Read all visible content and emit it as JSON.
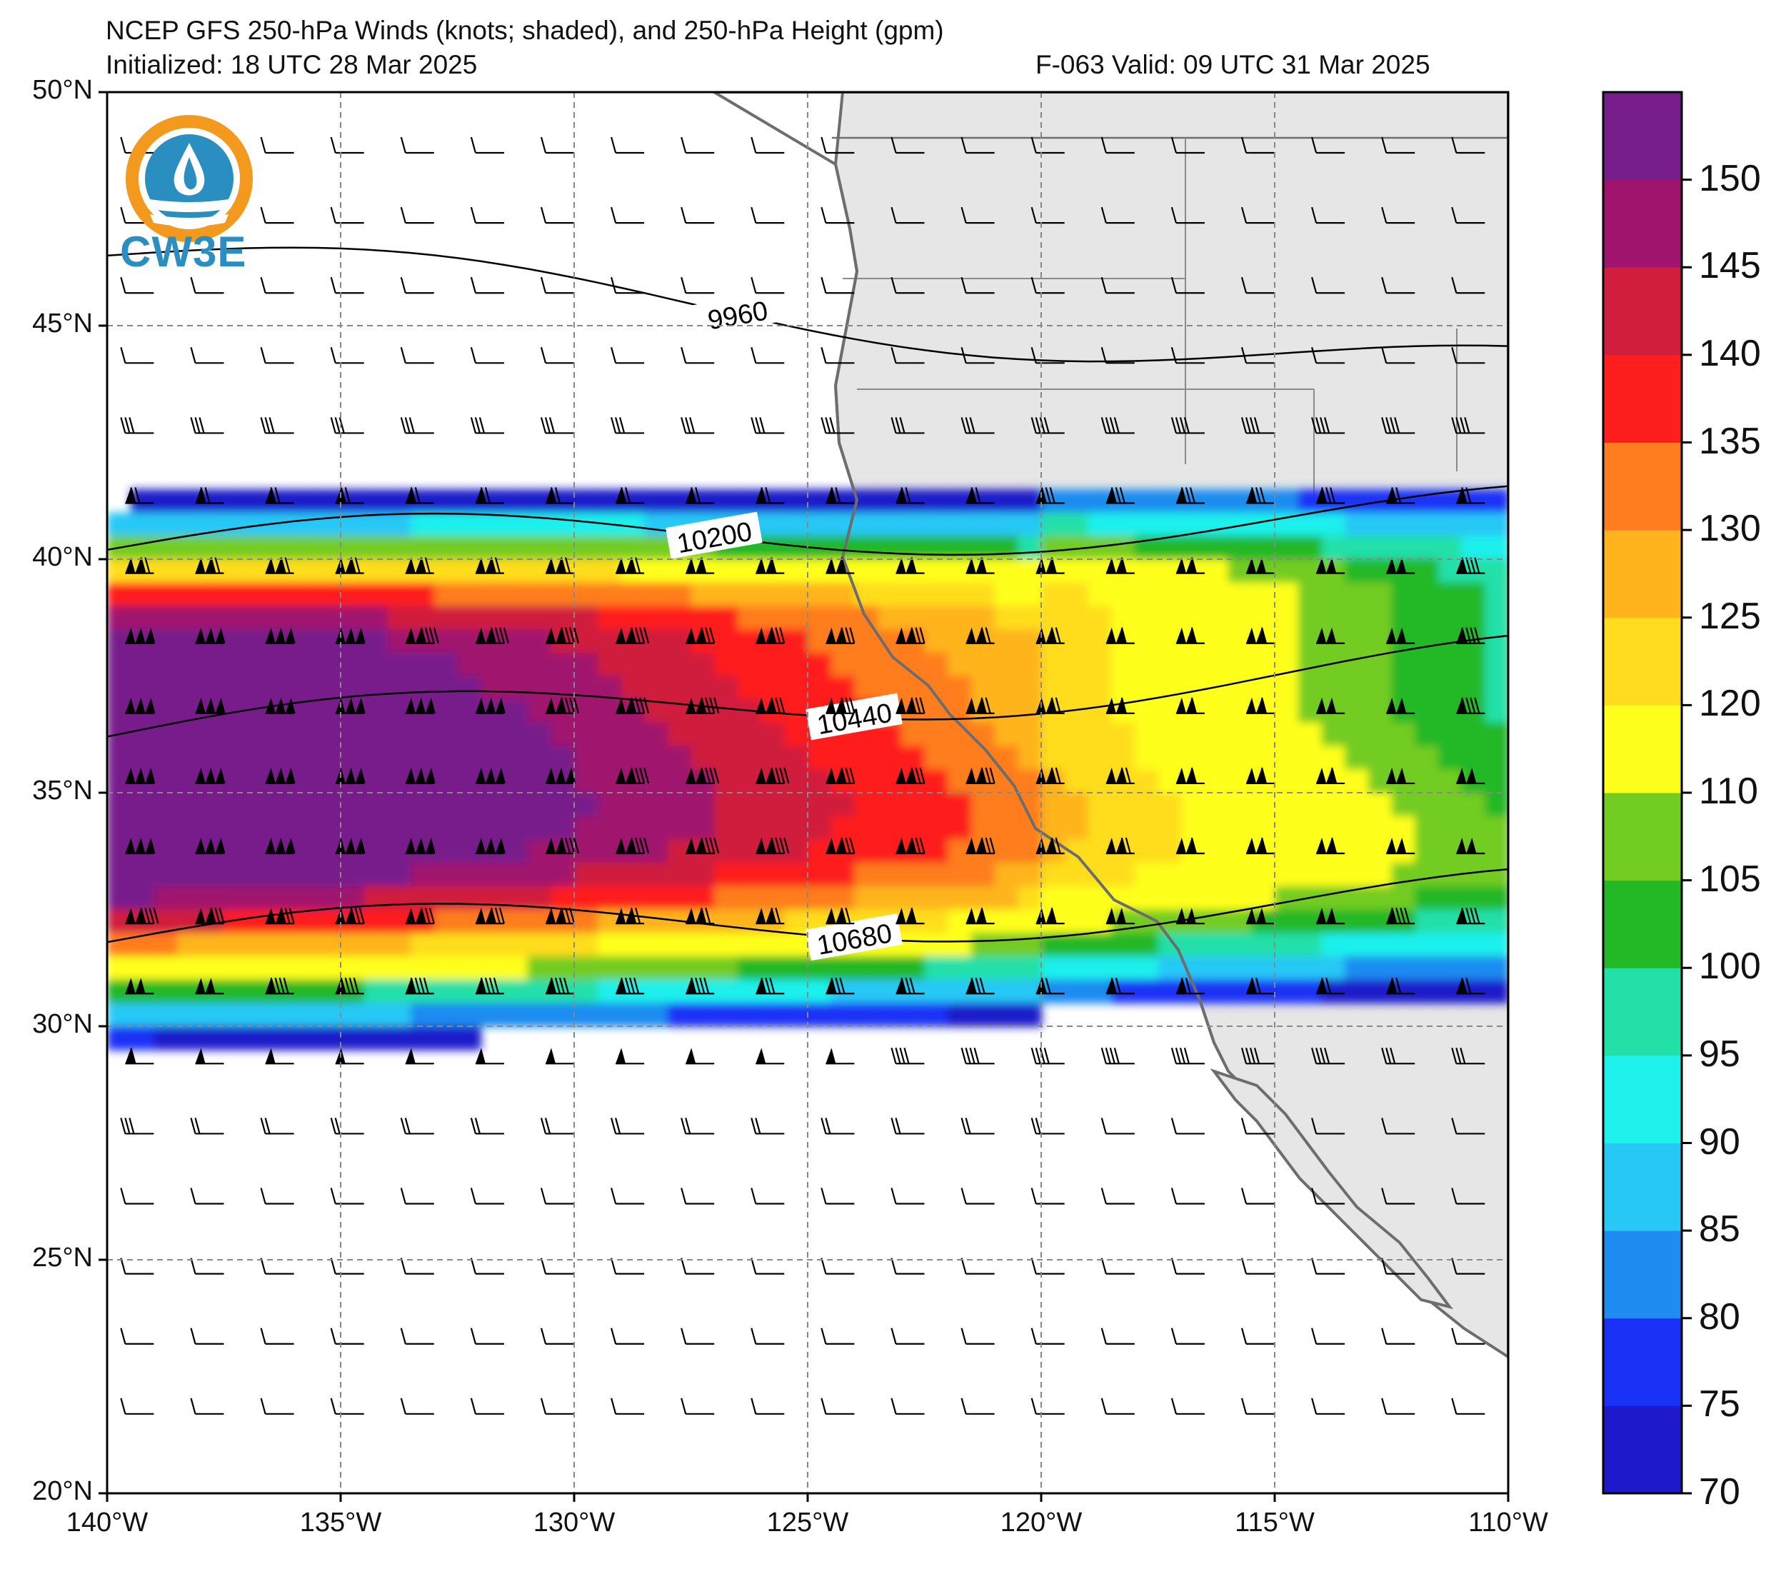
{
  "title": {
    "line1": "NCEP GFS 250-hPa Winds (knots; shaded), and 250-hPa Height (gpm)",
    "init": "Initialized: 18 UTC 28 Mar 2025",
    "valid": "F-063  Valid: 09 UTC 31 Mar 2025"
  },
  "logo": {
    "text": "CW3E"
  },
  "map": {
    "lat_ticks": [
      "50°N",
      "45°N",
      "40°N",
      "35°N",
      "30°N",
      "25°N",
      "20°N"
    ],
    "lon_ticks": [
      "140°W",
      "135°W",
      "130°W",
      "125°W",
      "120°W",
      "115°W",
      "110°W"
    ],
    "extent": {
      "lon_min": -140,
      "lon_max": -110,
      "lat_min": 20,
      "lat_max": 50
    },
    "contours": [
      {
        "value": 9960,
        "label": "9960"
      },
      {
        "value": 10200,
        "label": "10200"
      },
      {
        "value": 10440,
        "label": "10440"
      },
      {
        "value": 10680,
        "label": "10680"
      }
    ],
    "jet_core_lat": 38,
    "land_color": "#e6e6e6",
    "grid_style": "dashed"
  },
  "colorbar": {
    "labels": [
      "150",
      "145",
      "140",
      "135",
      "130",
      "125",
      "120",
      "110",
      "105",
      "100",
      "95",
      "90",
      "85",
      "80",
      "75",
      "70"
    ],
    "colors": [
      "#1e1acb",
      "#1a32f5",
      "#1e8cf0",
      "#27c8f5",
      "#1ef0ec",
      "#22e0a8",
      "#23b826",
      "#73cc21",
      "#ffff1e",
      "#ffdd1e",
      "#ffb41e",
      "#ff7d1e",
      "#ff1e1e",
      "#d01e3c",
      "#a0146e",
      "#781e8c"
    ]
  }
}
